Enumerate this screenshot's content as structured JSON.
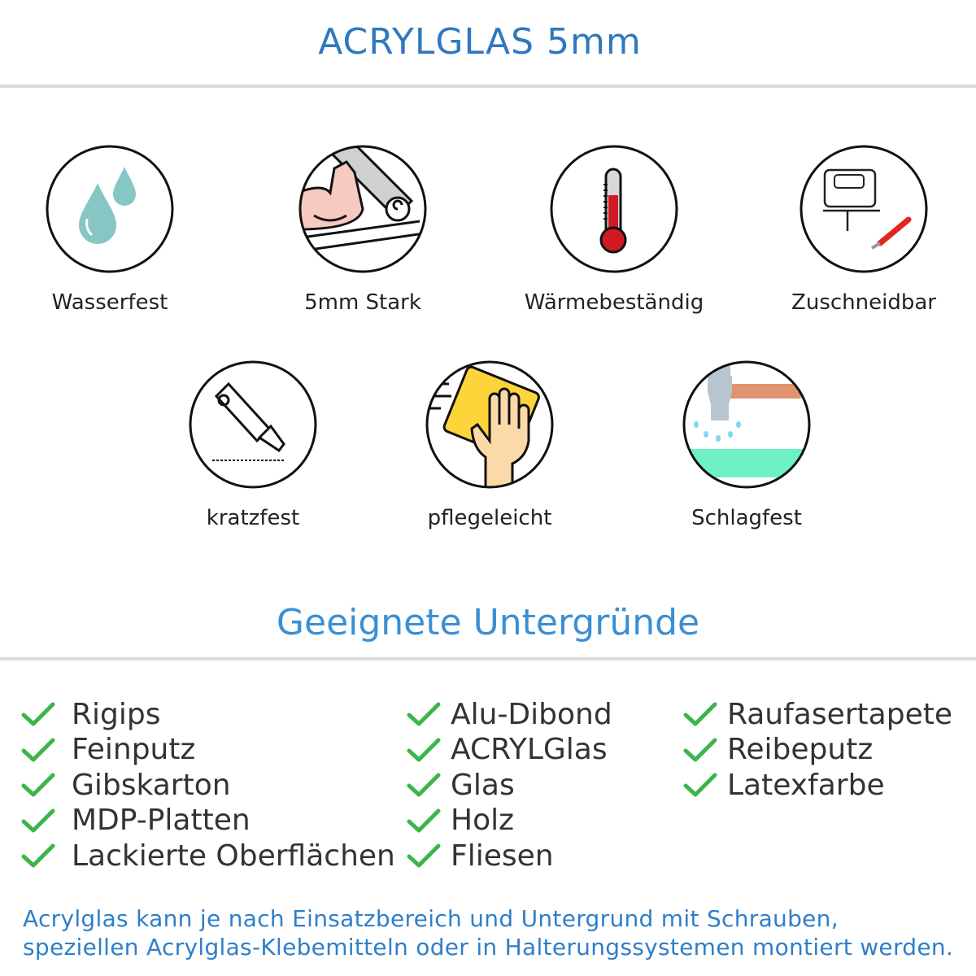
{
  "title": "ACRYLGLAS 5mm",
  "features": [
    {
      "label": "Wasserfest",
      "icon": "water-drops-icon"
    },
    {
      "label": "5mm Stark",
      "icon": "strong-arm-icon"
    },
    {
      "label": "Wärmebeständig",
      "icon": "thermometer-icon"
    },
    {
      "label": "Zuschneidbar",
      "icon": "jigsaw-cutter-icon"
    },
    {
      "label": "kratzfest",
      "icon": "cutter-knife-icon"
    },
    {
      "label": "pflegeleicht",
      "icon": "cleaning-hand-icon"
    },
    {
      "label": "Schlagfest",
      "icon": "hammer-icon"
    }
  ],
  "surfaces_title": "Geeignete Untergründe",
  "surfaces": {
    "col1": [
      "Rigips",
      "Feinputz",
      "Gibskarton",
      "MDP-Platten",
      "Lackierte Oberflächen"
    ],
    "col2": [
      "Alu-Dibond",
      "ACRYLGlas",
      "Glas",
      "Holz",
      "Fliesen"
    ],
    "col3": [
      "Raufasertapete",
      "Reibeputz",
      "Latexfarbe"
    ]
  },
  "footer": {
    "line1": "Acrylglas kann je nach Einsatzbereich und Untergrund mit Schrauben,",
    "line2": "speziellen Acrylglas-Klebemitteln oder in Halterungssystemen montiert werden."
  },
  "colors": {
    "title": "#2f78bf",
    "check": "#3cb54a",
    "footer": "#2f7fc8"
  }
}
